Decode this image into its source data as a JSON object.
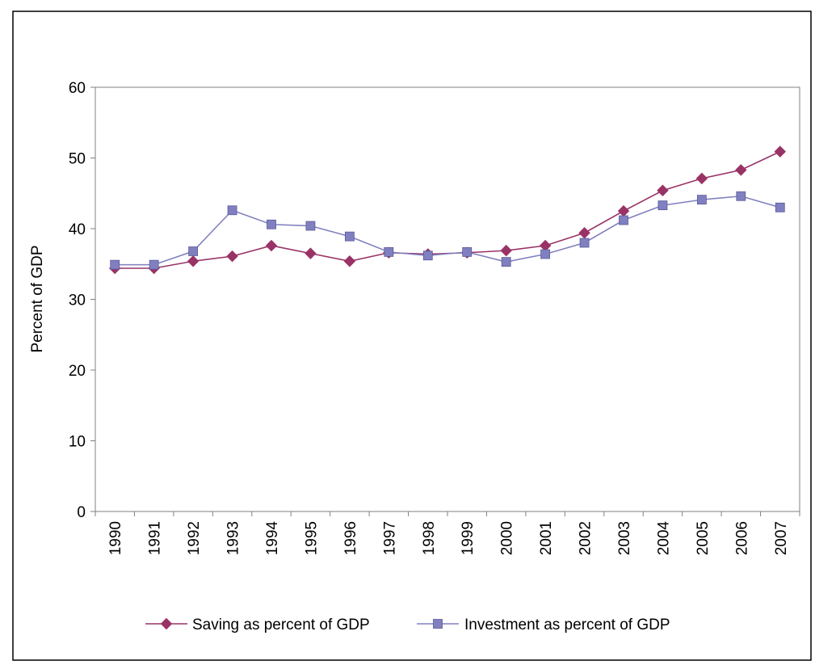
{
  "chart_data": {
    "type": "line",
    "title": "",
    "xlabel": "",
    "ylabel": "Percent of GDP",
    "ylim": [
      0,
      60
    ],
    "yticks": [
      0,
      10,
      20,
      30,
      40,
      50,
      60
    ],
    "grid": false,
    "legend_position": "bottom",
    "categories": [
      "1990",
      "1991",
      "1992",
      "1993",
      "1994",
      "1995",
      "1996",
      "1997",
      "1998",
      "1999",
      "2000",
      "2001",
      "2002",
      "2003",
      "2004",
      "2005",
      "2006",
      "2007"
    ],
    "series": [
      {
        "name": "Saving as percent of GDP",
        "color": "#993366",
        "marker": "diamond",
        "values": [
          34.4,
          34.4,
          35.4,
          36.1,
          37.6,
          36.5,
          35.4,
          36.6,
          36.4,
          36.6,
          36.9,
          37.6,
          39.4,
          42.5,
          45.4,
          47.1,
          48.3,
          50.9
        ]
      },
      {
        "name": "Investment as percent of GDP",
        "color": "#8080c0",
        "marker": "square",
        "values": [
          34.9,
          34.9,
          36.8,
          42.6,
          40.6,
          40.4,
          38.9,
          36.7,
          36.2,
          36.7,
          35.3,
          36.4,
          38.0,
          41.2,
          43.3,
          44.1,
          44.6,
          43.0
        ]
      }
    ]
  }
}
